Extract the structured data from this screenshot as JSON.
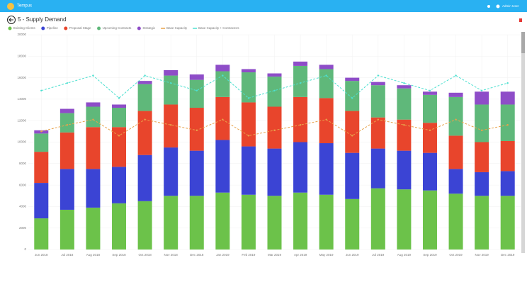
{
  "header": {
    "app_name": "Tempus",
    "user_name": "Admin User"
  },
  "chart_data": {
    "type": "bar",
    "title": "5 - Supply Demand",
    "categories": [
      "Jun 2018",
      "Jul 2018",
      "Aug 2018",
      "Sep 2018",
      "Oct 2018",
      "Nov 2018",
      "Dec 2018",
      "Jan 2019",
      "Feb 2019",
      "Mar 2019",
      "Apr 2019",
      "May 2019",
      "Jun 2019",
      "Jul 2019",
      "Aug 2019",
      "Sep 2019",
      "Oct 2019",
      "Nov 2019",
      "Dec 2019"
    ],
    "ylim": [
      0,
      20000
    ],
    "yticks": [
      0,
      2000,
      4000,
      6000,
      8000,
      10000,
      12000,
      14000,
      16000,
      18000,
      20000
    ],
    "grid": true,
    "series": [
      {
        "name": "Existing Clients",
        "type": "bar",
        "color": "#6cc24a",
        "values": [
          2900,
          3700,
          3900,
          4300,
          4500,
          5000,
          5000,
          5300,
          5100,
          5000,
          5300,
          5100,
          4700,
          5700,
          5600,
          5500,
          5200,
          5000,
          5000
        ]
      },
      {
        "name": "Pipeline",
        "type": "bar",
        "color": "#3b44d4",
        "values": [
          3300,
          3800,
          3600,
          3400,
          4300,
          4500,
          4200,
          4900,
          4500,
          4400,
          4700,
          4800,
          4300,
          3700,
          3600,
          3500,
          2300,
          2200,
          2300
        ]
      },
      {
        "name": "Proposal Stage",
        "type": "bar",
        "color": "#e8452c",
        "values": [
          2900,
          3400,
          3900,
          3700,
          4100,
          4000,
          4000,
          4000,
          4100,
          3900,
          4200,
          4200,
          3900,
          2900,
          2900,
          2800,
          3100,
          2800,
          2800
        ]
      },
      {
        "name": "Upcoming Contracts",
        "type": "bar",
        "color": "#5fb87a",
        "values": [
          1700,
          1800,
          1900,
          1800,
          2500,
          2700,
          2600,
          2400,
          2800,
          2800,
          2900,
          2700,
          2800,
          3000,
          2900,
          2600,
          3600,
          3500,
          3400
        ]
      },
      {
        "name": "Strategic",
        "type": "bar",
        "color": "#8e4dc8",
        "values": [
          300,
          400,
          400,
          300,
          300,
          500,
          500,
          600,
          300,
          300,
          400,
          400,
          300,
          300,
          300,
          300,
          400,
          1200,
          1200
        ]
      },
      {
        "name": "Base Capacity",
        "type": "line",
        "dashed": true,
        "color": "#e8a24a",
        "values": [
          11000,
          11600,
          12100,
          10600,
          12100,
          11600,
          11100,
          12100,
          10600,
          11100,
          11600,
          12100,
          10600,
          12100,
          11600,
          11100,
          12100,
          11100,
          11600
        ]
      },
      {
        "name": "Base Capacity + Contractors",
        "type": "line",
        "dashed": true,
        "color": "#4de0d0",
        "values": [
          14800,
          15500,
          16200,
          14100,
          16200,
          15500,
          14800,
          16200,
          14100,
          14800,
          15500,
          16200,
          14100,
          16200,
          15500,
          14800,
          16200,
          14800,
          15500
        ]
      }
    ]
  }
}
